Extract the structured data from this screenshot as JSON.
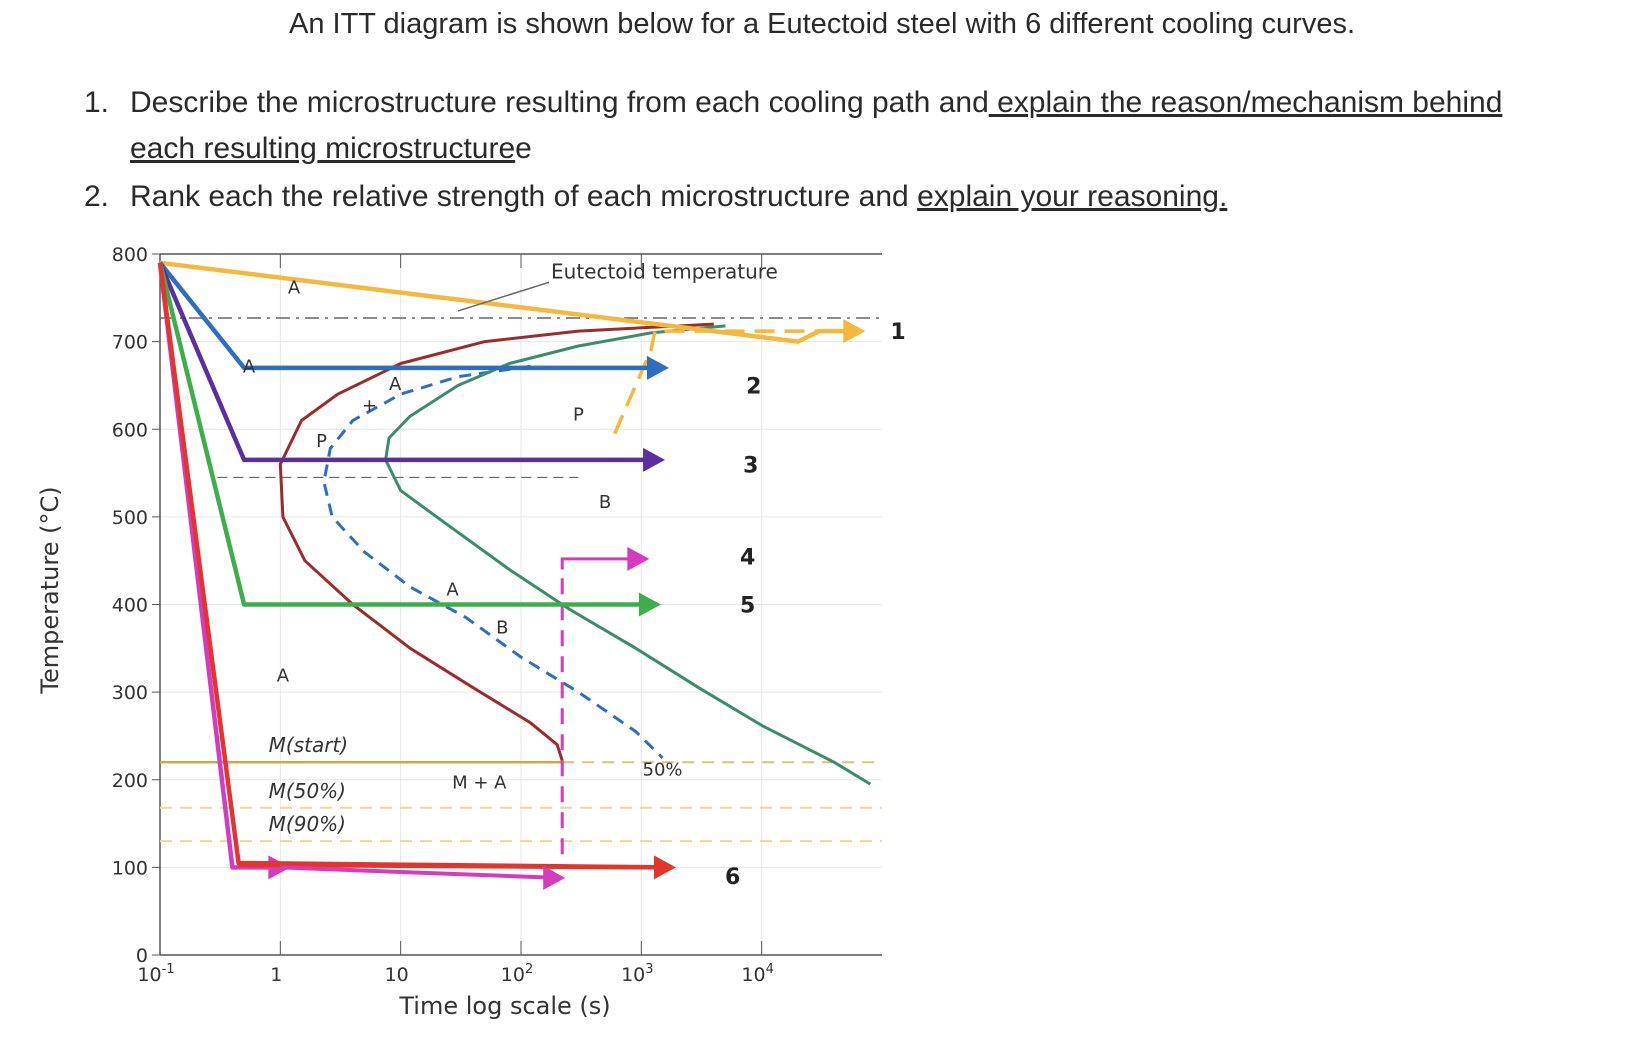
{
  "header": {
    "title": "An ITT diagram is shown below for a Eutectoid steel with 6 different cooling curves.",
    "q1_num": "1.",
    "q1_text": "Describe the microstructure resulting from each cooling path and",
    "q1_link": " explain the reason/mechanism behind",
    "q1_cont": "each resulting microstructure",
    "q1_end": "e",
    "q2_num": "2.",
    "q2_text": "Rank each the relative strength of each microstructure and ",
    "q2_link": "explain your reasoning."
  },
  "chart_data": {
    "type": "line",
    "xlabel": "Time log scale (s)",
    "ylabel": "Temperature (°C)",
    "xscale": "log",
    "xlim": [
      0.1,
      100000
    ],
    "ylim": [
      0,
      800
    ],
    "x_ticks": [
      {
        "v": 0.1,
        "label": "10",
        "exp": "-1"
      },
      {
        "v": 1,
        "label": "1",
        "exp": ""
      },
      {
        "v": 10,
        "label": "10",
        "exp": ""
      },
      {
        "v": 100,
        "label": "10",
        "exp": "2"
      },
      {
        "v": 1000,
        "label": "10",
        "exp": "3"
      },
      {
        "v": 10000,
        "label": "10",
        "exp": "4"
      }
    ],
    "y_ticks": [
      0,
      100,
      200,
      300,
      400,
      500,
      600,
      700,
      800
    ],
    "grid": true,
    "eutectoid_temperature": 727,
    "annotation_eutectoid": "Eutectoid temperature",
    "martensite_lines": [
      {
        "label": "M(start)",
        "temp": 220
      },
      {
        "label": "M(50%)",
        "temp": 168
      },
      {
        "label": "M(90%)",
        "temp": 130
      }
    ],
    "region_labels": [
      {
        "text": "A",
        "x": 1.3,
        "y": 755
      },
      {
        "text": "A",
        "x": 0.55,
        "y": 665
      },
      {
        "text": "+",
        "x": 5.5,
        "y": 620
      },
      {
        "text": "A",
        "x": 9,
        "y": 645
      },
      {
        "text": "P",
        "x": 2.2,
        "y": 580
      },
      {
        "text": "P",
        "x": 300,
        "y": 610
      },
      {
        "text": "A",
        "x": 27,
        "y": 410
      },
      {
        "text": "B",
        "x": 70,
        "y": 367
      },
      {
        "text": "B",
        "x": 500,
        "y": 510
      },
      {
        "text": "A",
        "x": 1.05,
        "y": 312
      },
      {
        "text": "M + A",
        "x": 45,
        "y": 190
      },
      {
        "text": "50%",
        "x": 1500,
        "y": 205
      }
    ],
    "transformation_curves": [
      {
        "name": "start",
        "color": "#9b2c2c",
        "x": [
          4000,
          300,
          50,
          10,
          3,
          1.5,
          1.0,
          1.05,
          1.6,
          4,
          12,
          40,
          120,
          200,
          220
        ],
        "y": [
          720,
          712,
          700,
          675,
          640,
          610,
          560,
          500,
          450,
          400,
          350,
          305,
          265,
          240,
          222
        ]
      },
      {
        "name": "50%",
        "color": "#2e6fbf",
        "dashed": true,
        "x": [
          120,
          30,
          10,
          4,
          2.6,
          2.3,
          2.7,
          5,
          12,
          35,
          100,
          300,
          900,
          1500
        ],
        "y": [
          672,
          660,
          640,
          610,
          578,
          540,
          500,
          460,
          420,
          385,
          340,
          300,
          255,
          225
        ]
      },
      {
        "name": "end",
        "color": "#3a8c6a",
        "x": [
          5000,
          1200,
          300,
          80,
          30,
          12,
          8,
          7.5,
          10,
          25,
          80,
          250,
          900,
          3000,
          10000,
          40000,
          80000
        ],
        "y": [
          718,
          710,
          695,
          675,
          650,
          615,
          590,
          565,
          530,
          490,
          440,
          395,
          350,
          305,
          262,
          220,
          195
        ]
      }
    ],
    "series": [
      {
        "name": "1",
        "color": "#f5b83a",
        "x": [
          0.1,
          20000,
          30000,
          60000
        ],
        "y": [
          790,
          700,
          712,
          712
        ]
      },
      {
        "name": "2",
        "color": "#2f6dbf",
        "x": [
          0.1,
          0.5,
          1400
        ],
        "y": [
          790,
          670,
          670
        ]
      },
      {
        "name": "3",
        "color": "#5b2fa0",
        "x": [
          0.1,
          0.5,
          1300
        ],
        "y": [
          790,
          565,
          565
        ]
      },
      {
        "name": "4",
        "color": "#d63bbf",
        "x": [
          0.1,
          0.4,
          1
        ],
        "y": [
          790,
          100,
          100
        ]
      },
      {
        "name": "5",
        "color": "#3cae4a",
        "x": [
          0.1,
          0.5,
          1200
        ],
        "y": [
          790,
          400,
          400
        ]
      },
      {
        "name": "6",
        "color": "#e3352b",
        "x": [
          0.1,
          0.45,
          1600
        ],
        "y": [
          790,
          105,
          100
        ]
      }
    ]
  }
}
